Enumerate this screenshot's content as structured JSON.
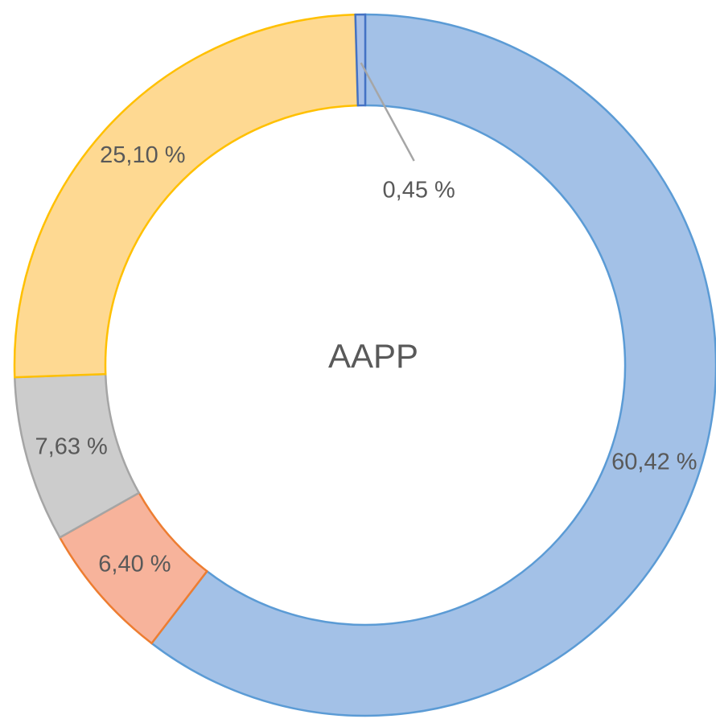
{
  "chart_data": {
    "type": "donut",
    "title": "AAPP",
    "values": [
      60.42,
      6.4,
      7.63,
      25.1,
      0.45
    ],
    "value_labels": [
      "60,42 %",
      "6,40 %",
      "7,63 %",
      "25,10 %",
      "0,45 %"
    ],
    "colors": [
      "#a3c1e7",
      "#f7b39b",
      "#cccccc",
      "#fed992",
      "#a6bfe8"
    ],
    "edge_colors": [
      "#5b9bd5",
      "#ed7d31",
      "#a5a5a5",
      "#ffc000",
      "#4472c4"
    ]
  }
}
